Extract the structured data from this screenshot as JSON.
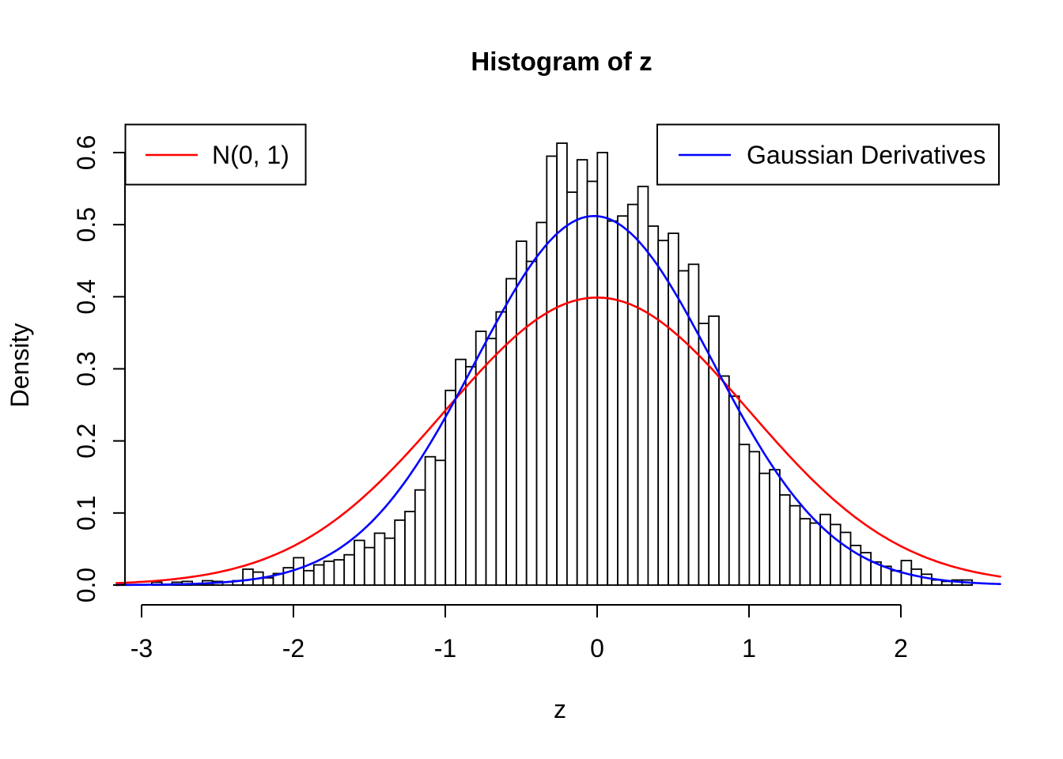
{
  "page": {
    "background": "#FFFFFF"
  },
  "chart_data": {
    "type": "bar",
    "subtype": "histogram-with-density-curves",
    "title": "Histogram of z",
    "xlabel": "z",
    "ylabel": "Density",
    "grid": false,
    "x_tick_labels": [
      "-3",
      "-2",
      "-1",
      "0",
      "1",
      "2"
    ],
    "x_tick_values": [
      -3,
      -2,
      -1,
      0,
      1,
      2
    ],
    "y_tick_labels": [
      "0.0",
      "0.1",
      "0.2",
      "0.3",
      "0.4",
      "0.5",
      "0.6"
    ],
    "y_tick_values": [
      0,
      0.1,
      0.2,
      0.3,
      0.4,
      0.5,
      0.6
    ],
    "xlim": [
      -3.166,
      2.66
    ],
    "ylim": [
      0,
      0.64
    ],
    "bar_fill": "#FFFFFF",
    "bar_stroke": "#000000",
    "bins": {
      "start": -2.933,
      "width": 0.0667
    },
    "bar_heights": [
      0.004,
      0.0,
      0.004,
      0.005,
      0.0,
      0.006,
      0.005,
      0.0,
      0.006,
      0.022,
      0.018,
      0.01,
      0.016,
      0.024,
      0.038,
      0.02,
      0.028,
      0.033,
      0.035,
      0.042,
      0.062,
      0.052,
      0.072,
      0.065,
      0.09,
      0.102,
      0.132,
      0.178,
      0.173,
      0.27,
      0.313,
      0.303,
      0.352,
      0.342,
      0.379,
      0.425,
      0.477,
      0.449,
      0.503,
      0.595,
      0.613,
      0.545,
      0.59,
      0.56,
      0.6,
      0.505,
      0.512,
      0.528,
      0.553,
      0.498,
      0.478,
      0.488,
      0.436,
      0.445,
      0.363,
      0.373,
      0.29,
      0.262,
      0.195,
      0.185,
      0.155,
      0.16,
      0.125,
      0.11,
      0.092,
      0.086,
      0.098,
      0.084,
      0.073,
      0.055,
      0.045,
      0.032,
      0.026,
      0.02,
      0.034,
      0.022,
      0.015,
      0.007,
      0.005,
      0.007,
      0.007
    ],
    "curves": [
      {
        "name": "N(0, 1)",
        "color": "#FF0000",
        "mean": 0,
        "sd": 1,
        "peak_density": 0.3989
      },
      {
        "name": "Gaussian Derivatives",
        "color": "#0000FF",
        "mean": -0.02,
        "sd": 0.78,
        "peak_density": 0.512
      }
    ],
    "legend": [
      {
        "label": "N(0, 1)",
        "color": "#FF0000",
        "position": "top-left"
      },
      {
        "label": "Gaussian Derivatives",
        "color": "#0000FF",
        "position": "top-right"
      }
    ]
  }
}
